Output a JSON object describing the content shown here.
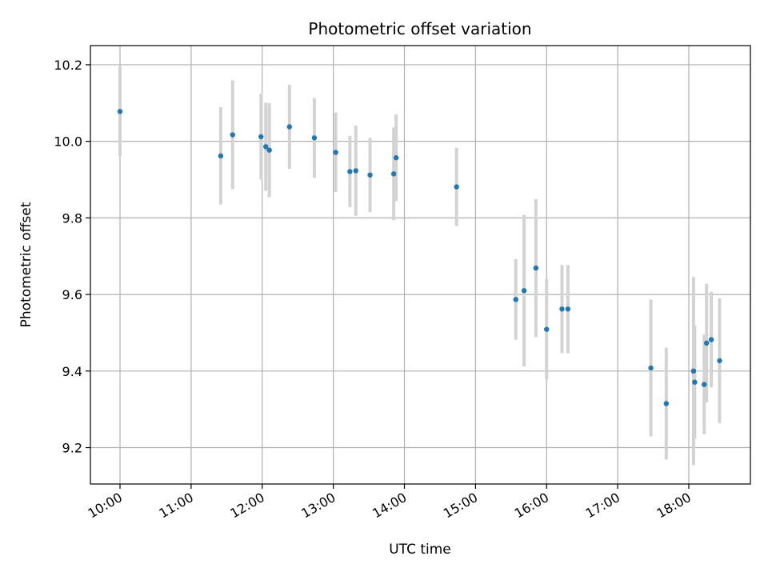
{
  "chart_data": {
    "type": "scatter",
    "title": "Photometric offset variation",
    "xlabel": "UTC time",
    "ylabel": "Photometric offset",
    "x_tick_labels": [
      "10:00",
      "11:00",
      "12:00",
      "13:00",
      "14:00",
      "15:00",
      "16:00",
      "17:00",
      "18:00"
    ],
    "y_tick_labels": [
      "9.2",
      "9.4",
      "9.6",
      "9.8",
      "10.0",
      "10.2"
    ],
    "x_ticks": [
      "10:00",
      "11:00",
      "12:00",
      "13:00",
      "14:00",
      "15:00",
      "16:00",
      "17:00",
      "18:00"
    ],
    "y_ticks": [
      9.2,
      9.4,
      9.6,
      9.8,
      10.0,
      10.2
    ],
    "xlim": [
      "09:35",
      "18:52"
    ],
    "ylim": [
      9.105,
      10.25
    ],
    "grid": true,
    "marker_color": "#1f77b4",
    "errorbar_color": "#d3d3d3",
    "points": [
      {
        "t": "10:00",
        "y": 10.078,
        "err": 0.117
      },
      {
        "t": "11:25",
        "y": 9.962,
        "err": 0.127
      },
      {
        "t": "11:35",
        "y": 10.017,
        "err": 0.142
      },
      {
        "t": "11:59",
        "y": 10.012,
        "err": 0.112
      },
      {
        "t": "12:03",
        "y": 9.986,
        "err": 0.115
      },
      {
        "t": "12:06",
        "y": 9.977,
        "err": 0.123
      },
      {
        "t": "12:23",
        "y": 10.038,
        "err": 0.11
      },
      {
        "t": "12:44",
        "y": 10.009,
        "err": 0.104
      },
      {
        "t": "13:02",
        "y": 9.971,
        "err": 0.104
      },
      {
        "t": "13:14",
        "y": 9.921,
        "err": 0.093
      },
      {
        "t": "13:19",
        "y": 9.923,
        "err": 0.118
      },
      {
        "t": "13:31",
        "y": 9.912,
        "err": 0.097
      },
      {
        "t": "13:51",
        "y": 9.915,
        "err": 0.121
      },
      {
        "t": "13:53",
        "y": 9.957,
        "err": 0.113
      },
      {
        "t": "14:44",
        "y": 9.881,
        "err": 0.102
      },
      {
        "t": "15:34",
        "y": 9.587,
        "err": 0.105
      },
      {
        "t": "15:41",
        "y": 9.61,
        "err": 0.198
      },
      {
        "t": "15:51",
        "y": 9.669,
        "err": 0.18
      },
      {
        "t": "16:00",
        "y": 9.509,
        "err": 0.131
      },
      {
        "t": "16:13",
        "y": 9.562,
        "err": 0.115
      },
      {
        "t": "16:18",
        "y": 9.562,
        "err": 0.115
      },
      {
        "t": "17:28",
        "y": 9.408,
        "err": 0.179
      },
      {
        "t": "17:41",
        "y": 9.315,
        "err": 0.146
      },
      {
        "t": "18:04",
        "y": 9.4,
        "err": 0.246
      },
      {
        "t": "18:05",
        "y": 9.371,
        "err": 0.148
      },
      {
        "t": "18:13",
        "y": 9.365,
        "err": 0.13
      },
      {
        "t": "18:15",
        "y": 9.473,
        "err": 0.155
      },
      {
        "t": "18:19",
        "y": 9.482,
        "err": 0.125
      },
      {
        "t": "18:26",
        "y": 9.427,
        "err": 0.163
      }
    ]
  }
}
